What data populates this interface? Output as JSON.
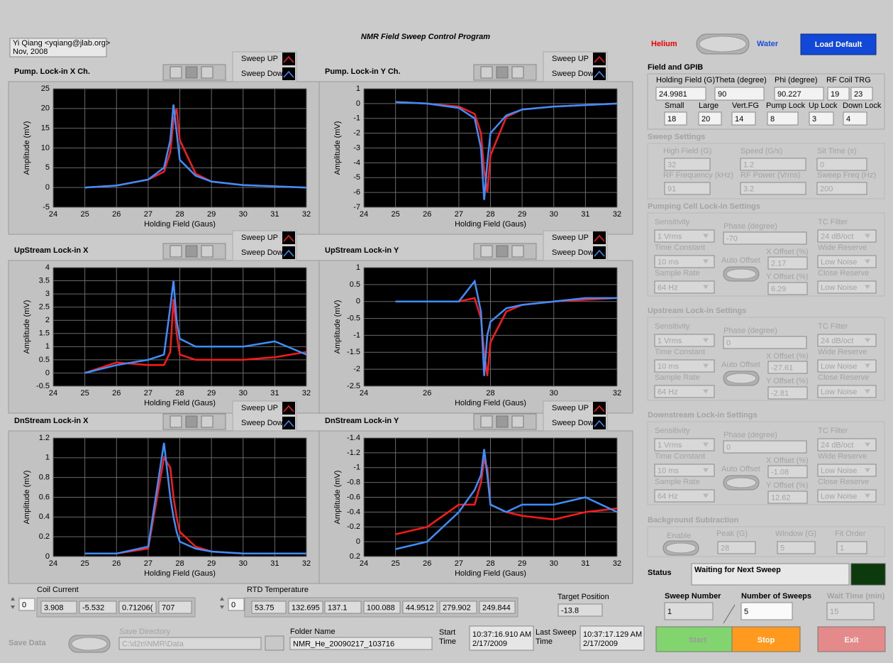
{
  "header": {
    "title": "NMR Field Sweep Control Program",
    "author": [
      "Yi Qiang <yqiang@jlab.org>",
      "Nov, 2008"
    ]
  },
  "mode": {
    "left": "Helium",
    "right": "Water",
    "button": "Load Default"
  },
  "charts": [
    {
      "type": "line",
      "title": "Pump. Lock-in X Ch.",
      "xlabel": "Holding Field (Gaus)",
      "ylabel": "Amplitude (mV)",
      "x": [
        25,
        26,
        27,
        27.5,
        27.7,
        27.8,
        27.9,
        28,
        28.5,
        29,
        30,
        31,
        32
      ],
      "xlim": [
        24,
        32
      ],
      "xticks": [
        24,
        25,
        26,
        27,
        28,
        29,
        30,
        31,
        32
      ],
      "ylim": [
        -5,
        25
      ],
      "yticks": [
        -5,
        0,
        5,
        10,
        15,
        20,
        25
      ],
      "grid": true,
      "series": [
        {
          "name": "Sweep UP",
          "color": "#ff1a1a",
          "values": [
            0,
            0.5,
            2,
            4,
            9,
            17,
            20,
            12,
            3.5,
            1.5,
            0.6,
            0.3,
            0
          ]
        },
        {
          "name": "Sweep Down",
          "color": "#3d8fff",
          "values": [
            0,
            0.5,
            2,
            5,
            12,
            21,
            14,
            7,
            3,
            1.5,
            0.6,
            0.3,
            0
          ]
        }
      ]
    },
    {
      "type": "line",
      "title": "Pump. Lock-in Y Ch.",
      "xlabel": "Holding Field (Gaus)",
      "ylabel": "Amplitude (mV)",
      "x": [
        25,
        26,
        27,
        27.5,
        27.7,
        27.8,
        27.9,
        28,
        28.5,
        29,
        30,
        31,
        32
      ],
      "xlim": [
        24,
        32
      ],
      "xticks": [
        24,
        25,
        26,
        27,
        28,
        29,
        30,
        31,
        32
      ],
      "ylim": [
        -7,
        1
      ],
      "yticks": [
        -7,
        -6,
        -5,
        -4,
        -3,
        -2,
        -1,
        0,
        1
      ],
      "grid": true,
      "series": [
        {
          "name": "Sweep UP",
          "color": "#ff1a1a",
          "values": [
            0.1,
            0,
            -0.2,
            -0.7,
            -2,
            -4.5,
            -6,
            -3.5,
            -0.9,
            -0.4,
            -0.2,
            -0.1,
            0
          ]
        },
        {
          "name": "Sweep Down",
          "color": "#3d8fff",
          "values": [
            0.1,
            0,
            -0.3,
            -1,
            -3,
            -6.5,
            -4,
            -2,
            -0.8,
            -0.4,
            -0.2,
            -0.1,
            0
          ]
        }
      ]
    },
    {
      "type": "line",
      "title": "UpStream Lock-in X",
      "xlabel": "Holding Field (Gaus)",
      "ylabel": "Amplitude (mV)",
      "x": [
        25,
        26,
        27,
        27.5,
        27.7,
        27.8,
        27.9,
        28,
        28.5,
        29,
        30,
        31,
        32
      ],
      "xlim": [
        24,
        32
      ],
      "xticks": [
        24,
        25,
        26,
        27,
        28,
        29,
        30,
        31,
        32
      ],
      "ylim": [
        -0.5,
        4
      ],
      "yticks": [
        -0.5,
        0,
        0.5,
        1,
        1.5,
        2,
        2.5,
        3,
        3.5,
        4
      ],
      "grid": true,
      "series": [
        {
          "name": "Sweep UP",
          "color": "#ff1a1a",
          "values": [
            0,
            0.4,
            0.3,
            0.3,
            0.8,
            2.8,
            1.5,
            0.7,
            0.5,
            0.5,
            0.5,
            0.6,
            0.8
          ]
        },
        {
          "name": "Sweep Down",
          "color": "#3d8fff",
          "values": [
            0,
            0.3,
            0.5,
            0.7,
            2.5,
            3.5,
            2,
            1.3,
            1,
            1,
            1,
            1.2,
            0.7
          ]
        }
      ]
    },
    {
      "type": "line",
      "title": "UpStream Lock-in Y",
      "xlabel": "Holding Field (Gaus)",
      "ylabel": "Amplitude (mV)",
      "x": [
        25,
        26,
        27,
        27.5,
        27.7,
        27.8,
        27.9,
        28,
        28.5,
        29,
        30,
        31,
        32
      ],
      "xlim": [
        24,
        32
      ],
      "xticks": [
        24,
        26,
        28,
        30,
        32
      ],
      "ylim": [
        -2.5,
        1
      ],
      "yticks": [
        -2.5,
        -2,
        -1.5,
        -1,
        -0.5,
        0,
        0.5,
        1
      ],
      "grid": true,
      "series": [
        {
          "name": "Sweep UP",
          "color": "#ff1a1a",
          "values": [
            0,
            0,
            0,
            0.1,
            -0.5,
            -1.5,
            -2.2,
            -1.2,
            -0.3,
            -0.1,
            0,
            0.05,
            0.1
          ]
        },
        {
          "name": "Sweep Down",
          "color": "#3d8fff",
          "values": [
            0,
            0,
            0,
            0.6,
            -0.3,
            -2.2,
            -1,
            -0.6,
            -0.2,
            -0.1,
            0,
            0.1,
            0.1
          ]
        }
      ]
    },
    {
      "type": "line",
      "title": "DnStream Lock-in X",
      "xlabel": "Holding Field (Gaus)",
      "ylabel": "Amplitude (mV)",
      "x": [
        25,
        26,
        27,
        27.5,
        27.7,
        27.8,
        27.9,
        28,
        28.5,
        29,
        30,
        31,
        32
      ],
      "xlim": [
        24,
        32
      ],
      "xticks": [
        24,
        25,
        26,
        27,
        28,
        29,
        30,
        31,
        32
      ],
      "ylim": [
        0,
        1.2
      ],
      "yticks": [
        0,
        0.2,
        0.4,
        0.6,
        0.8,
        1,
        1.2
      ],
      "grid": true,
      "series": [
        {
          "name": "Sweep UP",
          "color": "#ff1a1a",
          "values": [
            0.03,
            0.03,
            0.08,
            1,
            0.9,
            0.6,
            0.4,
            0.25,
            0.1,
            0.05,
            0.03,
            0.03,
            0.03
          ]
        },
        {
          "name": "Sweep Down",
          "color": "#3d8fff",
          "values": [
            0.03,
            0.03,
            0.1,
            1.15,
            0.6,
            0.4,
            0.25,
            0.15,
            0.08,
            0.05,
            0.03,
            0.03,
            0.03
          ]
        }
      ]
    },
    {
      "type": "line",
      "title": "DnStream Lock-in Y",
      "xlabel": "Holding Field (Gaus)",
      "ylabel": "Amplitude (mV)",
      "x": [
        25,
        26,
        27,
        27.5,
        27.7,
        27.8,
        27.9,
        28,
        28.5,
        29,
        30,
        31,
        32
      ],
      "xlim": [
        24,
        32
      ],
      "xticks": [
        24,
        25,
        26,
        27,
        28,
        29,
        30,
        31,
        32
      ],
      "ylim": [
        0.2,
        -1.4
      ],
      "yticks": [
        -1.4,
        -1.2,
        -1,
        -0.8,
        -0.6,
        -0.4,
        -0.2,
        0,
        0.2
      ],
      "grid": true,
      "series": [
        {
          "name": "Sweep UP",
          "color": "#ff1a1a",
          "values": [
            -0.1,
            -0.2,
            -0.5,
            -0.5,
            -0.8,
            -1.1,
            -1,
            -0.5,
            -0.4,
            -0.35,
            -0.3,
            -0.4,
            -0.45
          ]
        },
        {
          "name": "Sweep Down",
          "color": "#3d8fff",
          "values": [
            0.1,
            0,
            -0.4,
            -0.7,
            -0.9,
            -1.25,
            -0.9,
            -0.5,
            -0.4,
            -0.5,
            -0.5,
            -0.6,
            -0.4
          ]
        }
      ]
    }
  ],
  "field_gpib": {
    "title": "Field and GPIB",
    "fields": [
      {
        "label": "Holding Field (G)",
        "value": "24.9981"
      },
      {
        "label": "Theta (degree)",
        "value": "90"
      },
      {
        "label": "Phi (degree)",
        "value": "90.227"
      },
      {
        "label": "RF Coil TRG",
        "value": [
          "19",
          "23"
        ]
      },
      {
        "label": "Small",
        "value": "18"
      },
      {
        "label": "Large",
        "value": "20"
      },
      {
        "label": "Vert.FG",
        "value": "14"
      },
      {
        "label": "Pump Lock",
        "value": "8"
      },
      {
        "label": "Up Lock",
        "value": "3"
      },
      {
        "label": "Down Lock",
        "value": "4"
      }
    ]
  },
  "sweep_settings": {
    "title": "Sweep Settings",
    "fields": [
      {
        "label": "High Field (G)",
        "value": "32"
      },
      {
        "label": "Speed (G/s)",
        "value": "1.2"
      },
      {
        "label": "Sit Time (s)",
        "value": "0"
      },
      {
        "label": "RF Frequency (kHz)",
        "value": "91"
      },
      {
        "label": "RF Power (Vrms)",
        "value": "3.2"
      },
      {
        "label": "Sweep Freq (Hz)",
        "value": "200"
      }
    ]
  },
  "lockins": [
    {
      "title": "Pumping Cell Lock-in Settings",
      "auto_offset": "Auto Offset",
      "fields": [
        {
          "label": "Sensitivity",
          "value": "1 Vrms"
        },
        {
          "label": "Phase (degree)",
          "value": "-70"
        },
        {
          "label": "TC Filter",
          "value": "24 dB/oct"
        },
        {
          "label": "Time Constant",
          "value": "10 ms"
        },
        {
          "label": "X Offset (%)",
          "value": "2.17"
        },
        {
          "label": "Wide Reserve",
          "value": "Low Noise"
        },
        {
          "label": "Sample Rate",
          "value": "64 Hz"
        },
        {
          "label": "Y Offset (%)",
          "value": "6.29"
        },
        {
          "label": "Close Reserve",
          "value": "Low Noise"
        }
      ]
    },
    {
      "title": "Upstream Lock-in Settings",
      "auto_offset": "Auto Offset",
      "fields": [
        {
          "label": "Sensitivity",
          "value": "1 Vrms"
        },
        {
          "label": "Phase (degree)",
          "value": "0"
        },
        {
          "label": "TC Filter",
          "value": "24 dB/oct"
        },
        {
          "label": "Time Constant",
          "value": "10 ms"
        },
        {
          "label": "X Offset (%)",
          "value": "-27.61"
        },
        {
          "label": "Wide Reserve",
          "value": "Low Noise"
        },
        {
          "label": "Sample Rate",
          "value": "64 Hz"
        },
        {
          "label": "Y Offset (%)",
          "value": "-2.81"
        },
        {
          "label": "Close Reserve",
          "value": "Low Noise"
        }
      ]
    },
    {
      "title": "Downstream Lock-in Settings",
      "auto_offset": "Auto Offset",
      "fields": [
        {
          "label": "Sensitivity",
          "value": "1 Vrms"
        },
        {
          "label": "Phase (degree)",
          "value": "0"
        },
        {
          "label": "TC Filter",
          "value": "24 dB/oct"
        },
        {
          "label": "Time Constant",
          "value": "10 ms"
        },
        {
          "label": "X Offset (%)",
          "value": "-1.08"
        },
        {
          "label": "Wide Reserve",
          "value": "Low Noise"
        },
        {
          "label": "Sample Rate",
          "value": "64 Hz"
        },
        {
          "label": "Y Offset (%)",
          "value": "12.62"
        },
        {
          "label": "Close Reserve",
          "value": "Low Noise"
        }
      ]
    }
  ],
  "background": {
    "title": "Background Subtraction",
    "enable": "Enable",
    "fields": [
      {
        "label": "Peak (G)",
        "value": "28"
      },
      {
        "label": "Window (G)",
        "value": "5"
      },
      {
        "label": "Fit Order",
        "value": "1"
      }
    ]
  },
  "status": {
    "label": "Status",
    "value": "Waiting for Next Sweep"
  },
  "sweep": [
    {
      "label": "Sweep Number",
      "value": "1"
    },
    {
      "label": "Number of Sweeps",
      "value": "5"
    },
    {
      "label": "Wait Time (min)",
      "value": "15"
    }
  ],
  "buttons": [
    "Start",
    "Stop",
    "Exit"
  ],
  "coil_current": {
    "label": "Coil Current",
    "index": "0",
    "values": [
      "3.908",
      "-5.532",
      "0.71206(",
      "707"
    ]
  },
  "rtd_temperature": {
    "label": "RTD Temperature",
    "index": "0",
    "values": [
      "53.75",
      "132.695",
      "137.1",
      "100.088",
      "44.9512",
      "279.902",
      "249.844"
    ]
  },
  "target_position": {
    "label": "Target Position",
    "value": "-13.8"
  },
  "save": {
    "label": "Save Data",
    "directory_label": "Save Directory",
    "directory": "C:\\d2n\\NMR\\Data",
    "folder_label": "Folder Name",
    "folder": "NMR_He_20090217_103716"
  },
  "start_time": {
    "label": [
      "Start",
      "Time"
    ],
    "value": [
      "10:37:16.910 AM",
      "2/17/2009"
    ]
  },
  "last_sweep_time": {
    "label": [
      "Last Sweep",
      "Time"
    ],
    "value": [
      "10:37:17.129 AM",
      "2/17/2009"
    ]
  }
}
